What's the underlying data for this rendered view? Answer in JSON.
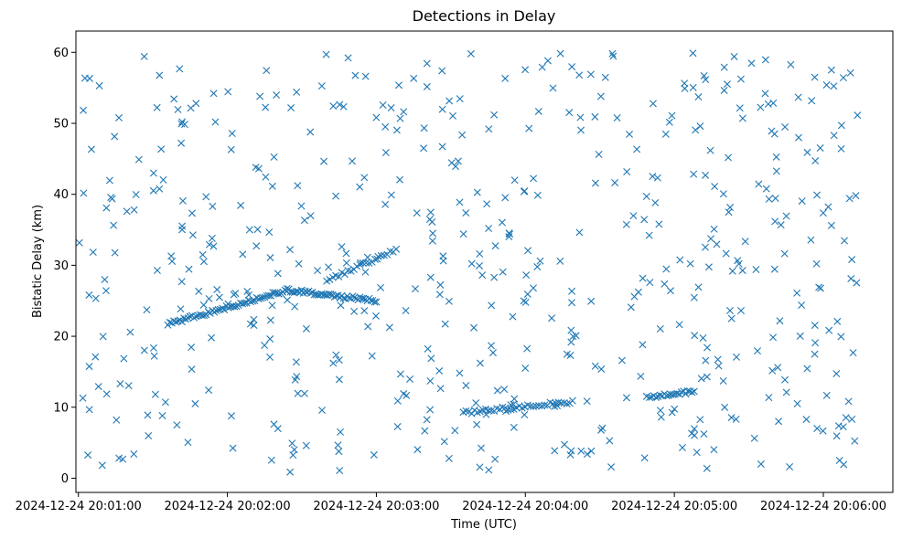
{
  "chart_data": {
    "type": "scatter",
    "title": "Detections in Delay",
    "xlabel": "Time (UTC)",
    "ylabel": "Bistatic Delay (km)",
    "marker": "x",
    "color": "#1f77b4",
    "grid": false,
    "legend": "none",
    "xlim": [
      "2024-12-24 20:00:59",
      "2024-12-24 20:06:28"
    ],
    "ylim": [
      -2,
      63
    ],
    "x_ticks": [
      "2024-12-24 20:01:00",
      "2024-12-24 20:02:00",
      "2024-12-24 20:03:00",
      "2024-12-24 20:04:00",
      "2024-12-24 20:05:00",
      "2024-12-24 20:06:00"
    ],
    "y_ticks": [
      0,
      10,
      20,
      30,
      40,
      50,
      60
    ],
    "tracks": [
      {
        "t_start": "2024-12-24 20:01:36",
        "t_end": "2024-12-24 20:02:24",
        "y_start": 21.7,
        "y_end": 26.5,
        "count": 60
      },
      {
        "t_start": "2024-12-24 20:02:24",
        "t_end": "2024-12-24 20:03:00",
        "y_start": 26.5,
        "y_end": 25.0,
        "count": 50
      },
      {
        "t_start": "2024-12-24 20:02:40",
        "t_end": "2024-12-24 20:03:08",
        "y_start": 27.8,
        "y_end": 32.2,
        "count": 24
      },
      {
        "t_start": "2024-12-24 20:03:35",
        "t_end": "2024-12-24 20:04:19",
        "y_start": 9.2,
        "y_end": 10.8,
        "count": 40
      },
      {
        "t_start": "2024-12-24 20:04:50",
        "t_end": "2024-12-24 20:05:08",
        "y_start": 11.5,
        "y_end": 12.2,
        "count": 22
      }
    ],
    "scatter_region": {
      "t_start": "2024-12-24 20:01:00",
      "t_end": "2024-12-24 20:06:14",
      "y_min": 0.8,
      "y_max": 59.9
    },
    "scatter_count": 560
  }
}
